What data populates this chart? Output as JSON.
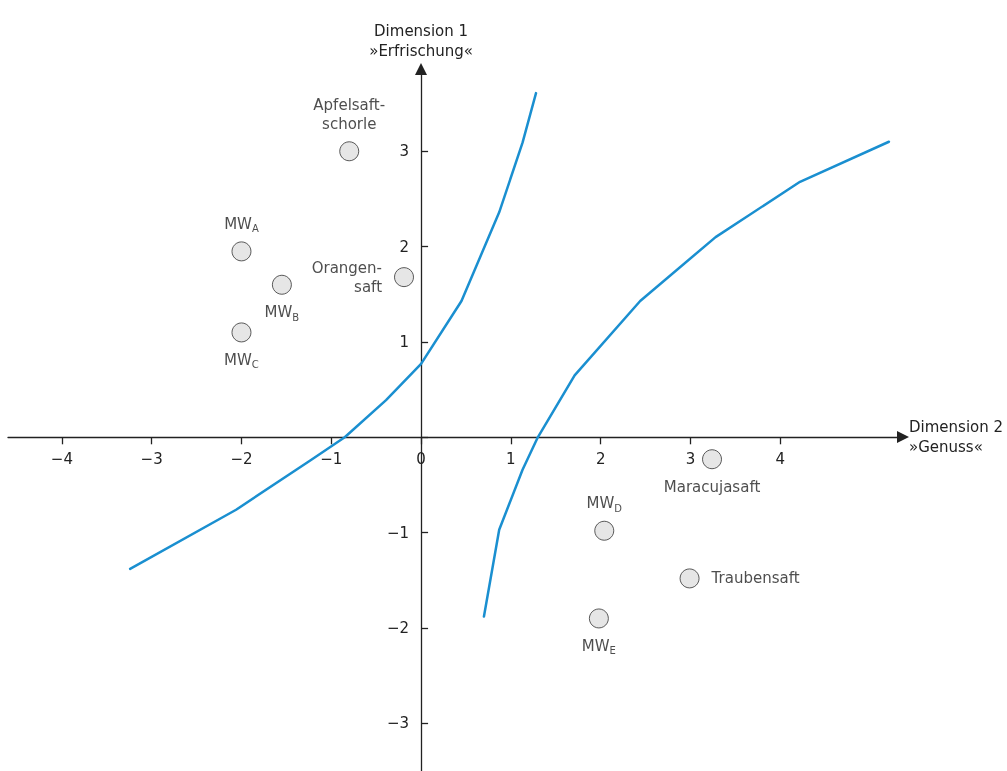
{
  "chart_data": {
    "type": "scatter",
    "xlabel": "Dimension 2\n»Genuss«",
    "ylabel": "Dimension 1\n»Erfrischung«",
    "xlim": [
      -4.6,
      5.3
    ],
    "ylim": [
      -3.5,
      3.8
    ],
    "xticks": [
      -4,
      -3,
      -2,
      -1,
      0,
      1,
      2,
      3,
      4
    ],
    "yticks": [
      -3,
      -2,
      -1,
      {
        "value": 0,
        "label": null
      },
      1,
      2,
      3
    ],
    "grid": false,
    "marker": "circle",
    "series": [
      {
        "color": "#e0e0e0",
        "x": [
          -0.8,
          -2.0,
          -1.55,
          -2.0,
          -0.19,
          3.24,
          2.04,
          2.99,
          1.98
        ],
        "values": [
          3.0,
          1.95,
          1.6,
          1.1,
          1.68,
          -0.23,
          -0.98,
          -1.48,
          -1.9
        ],
        "value_labels": [
          "Apfelsaft-\nschorle",
          "MW$_{A}$",
          "MW$_{B}$",
          "MW$_{C}$",
          "Orangen-\nsaft",
          "Maracujasaft",
          "MW$_{D}$",
          "Traubensaft",
          "MW$_{E}$"
        ]
      },
      {
        "type": "line",
        "color": "#1a8fd0",
        "marker": "none",
        "x": [
          -3.24,
          -2.06,
          -1.23,
          -0.85,
          -0.39,
          0,
          0.45,
          0.87,
          1.13,
          1.28
        ],
        "values": [
          -1.38,
          -0.76,
          -0.24,
          0,
          0.39,
          0.77,
          1.43,
          2.36,
          3.09,
          3.61
        ]
      },
      {
        "type": "line",
        "color": "#1a8fd0",
        "marker": "none",
        "x": [
          0.7,
          0.87,
          1.13,
          1.3,
          1.71,
          2.44,
          3.28,
          4.22,
          5.21
        ],
        "values": [
          -1.88,
          -0.97,
          -0.34,
          0,
          0.65,
          1.43,
          2.1,
          2.68,
          3.1
        ]
      }
    ]
  }
}
